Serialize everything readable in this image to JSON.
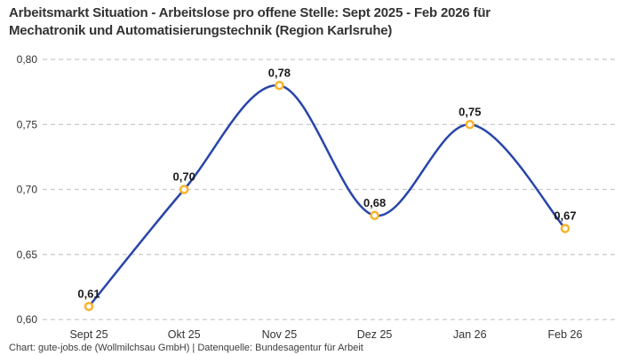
{
  "title": {
    "line1": "Arbeitsmarkt Situation - Arbeitslose pro offene Stelle: Sept 2025 - Feb 2026 für",
    "line2": "Mechatronik und Automatisierungstechnik (Region Karlsruhe)"
  },
  "footer": "Chart: gute-jobs.de (Wollmilchsau GmbH) | Datenquelle: Bundesagentur für Arbeit",
  "colors": {
    "line": "#2845A9",
    "marker_ring": "#F7B32B",
    "marker_fill": "#ffffff",
    "grid": "#c9c9c9",
    "axis_text": "#333333",
    "point_label_text": "#1a1a1a",
    "title_text": "#333333",
    "footer_text": "#3d3d3d",
    "background": "#ffffff"
  },
  "chart_data": {
    "type": "line",
    "title": "Arbeitsmarkt Situation - Arbeitslose pro offene Stelle: Sept 2025 - Feb 2026 für Mechatronik und Automatisierungstechnik (Region Karlsruhe)",
    "categories": [
      "Sept 25",
      "Okt 25",
      "Nov 25",
      "Dez 25",
      "Jan 26",
      "Feb 26"
    ],
    "values": [
      0.61,
      0.7,
      0.78,
      0.68,
      0.75,
      0.67
    ],
    "value_labels": [
      "0,61",
      "0,70",
      "0,78",
      "0,68",
      "0,75",
      "0,67"
    ],
    "y_ticks": [
      {
        "label": "0,60",
        "value": 0.6
      },
      {
        "label": "0,65",
        "value": 0.65
      },
      {
        "label": "0,70",
        "value": 0.7
      },
      {
        "label": "0,75",
        "value": 0.75
      },
      {
        "label": "0,80",
        "value": 0.8
      }
    ],
    "ylim": [
      0.6,
      0.8
    ],
    "xlabel": "",
    "ylabel": "",
    "grid": "dashed-horizontal",
    "legend": "none",
    "line_style": "smooth-spline",
    "decimal_separator": ","
  }
}
